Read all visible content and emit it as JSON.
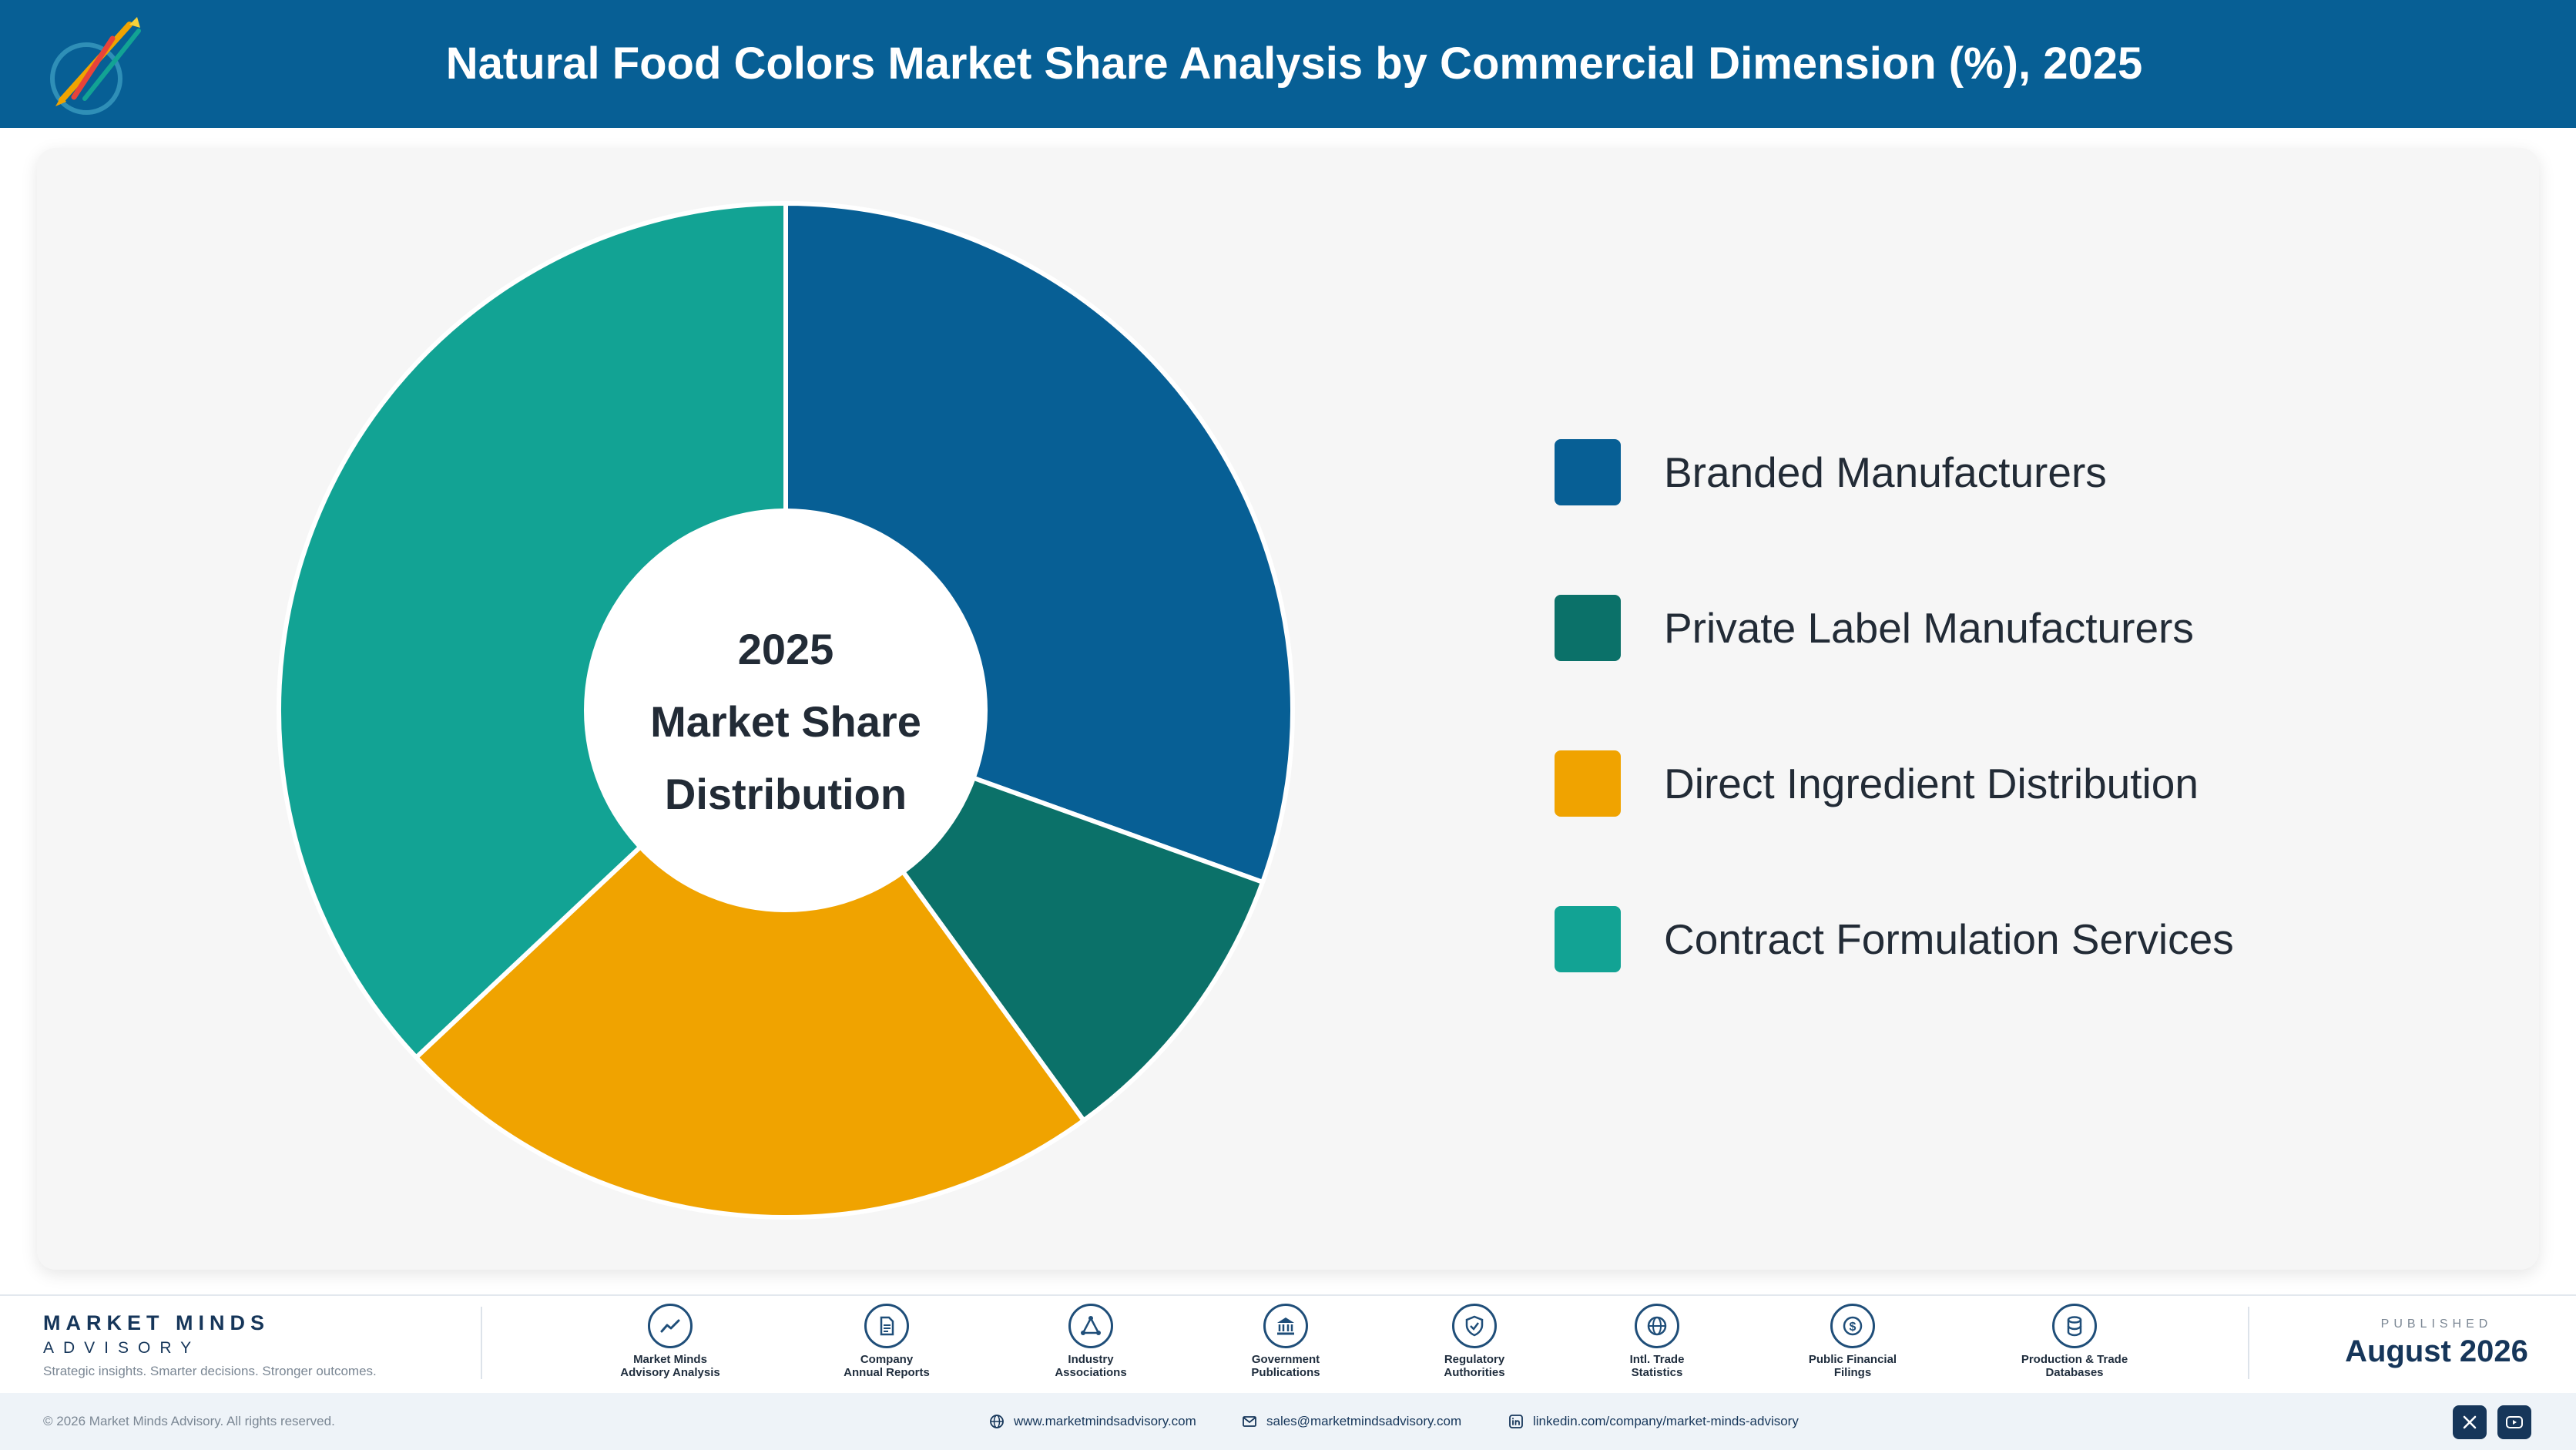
{
  "header": {
    "title": "Natural Food Colors Market Share Analysis by Commercial Dimension (%), 2025",
    "logo_icon": "market-minds-logo-icon"
  },
  "chart_data": {
    "type": "pie",
    "donut": true,
    "center_label": [
      "2025",
      "Market Share",
      "Distribution"
    ],
    "categories": [
      "Branded Manufacturers",
      "Private Label Manufacturers",
      "Direct Ingredient Distribution",
      "Contract Formulation Services"
    ],
    "values": [
      30.5,
      9.5,
      23.0,
      37.0
    ],
    "colors": [
      "#075f95",
      "#0b7169",
      "#f0a300",
      "#12a394"
    ],
    "legend_position": "right",
    "data_labels": false
  },
  "footer": {
    "brand_name": "MARKET MINDS",
    "brand_sub": "ADVISORY",
    "brand_tagline": "Strategic insights. Smarter decisions. Stronger outcomes.",
    "sources": [
      {
        "label": "Market Minds\nAdvisory Analysis",
        "icon": "trend-chart-icon"
      },
      {
        "label": "Company\nAnnual Reports",
        "icon": "document-icon"
      },
      {
        "label": "Industry\nAssociations",
        "icon": "network-icon"
      },
      {
        "label": "Government\nPublications",
        "icon": "government-building-icon"
      },
      {
        "label": "Regulatory\nAuthorities",
        "icon": "shield-check-icon"
      },
      {
        "label": "Intl. Trade\nStatistics",
        "icon": "globe-icon"
      },
      {
        "label": "Public Financial\nFilings",
        "icon": "dollar-coin-icon"
      },
      {
        "label": "Production & Trade\nDatabases",
        "icon": "database-icon"
      }
    ],
    "published_label": "PUBLISHED",
    "published_date": "August 2026"
  },
  "bottom_bar": {
    "copyright": "© 2026 Market Minds Advisory. All rights reserved.",
    "website": "www.marketmindsadvisory.com",
    "email": "sales@marketmindsadvisory.com",
    "linkedin": "linkedin.com/company/market-minds-advisory",
    "social_icons": [
      "x-icon",
      "youtube-icon"
    ]
  }
}
